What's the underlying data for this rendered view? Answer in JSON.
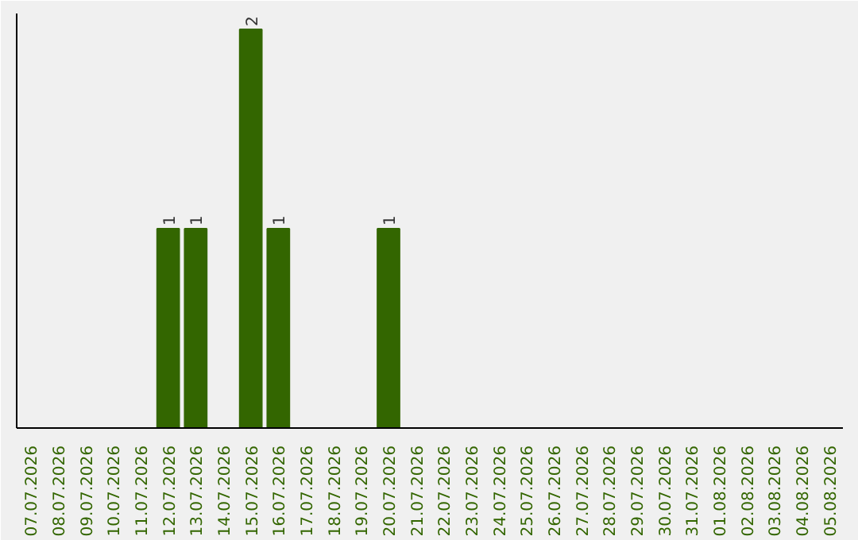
{
  "chart_data": {
    "type": "bar",
    "categories": [
      "07.07.2026",
      "08.07.2026",
      "09.07.2026",
      "10.07.2026",
      "11.07.2026",
      "12.07.2026",
      "13.07.2026",
      "14.07.2026",
      "15.07.2026",
      "16.07.2026",
      "17.07.2026",
      "18.07.2026",
      "19.07.2026",
      "20.07.2026",
      "21.07.2026",
      "22.07.2026",
      "23.07.2026",
      "24.07.2026",
      "25.07.2026",
      "26.07.2026",
      "27.07.2026",
      "28.07.2026",
      "29.07.2026",
      "30.07.2026",
      "31.07.2026",
      "01.08.2026",
      "02.08.2026",
      "03.08.2026",
      "04.08.2026",
      "05.08.2026"
    ],
    "values": [
      0,
      0,
      0,
      0,
      0,
      1,
      1,
      0,
      2,
      1,
      0,
      0,
      0,
      1,
      0,
      0,
      0,
      0,
      0,
      0,
      0,
      0,
      0,
      0,
      0,
      0,
      0,
      0,
      0,
      0
    ],
    "value_labels": [
      null,
      null,
      null,
      null,
      null,
      "1",
      "1",
      null,
      "2",
      "1",
      null,
      null,
      null,
      "1",
      null,
      null,
      null,
      null,
      null,
      null,
      null,
      null,
      null,
      null,
      null,
      null,
      null,
      null,
      null,
      null
    ],
    "color": "#336600",
    "ylim": [
      0,
      2.08
    ],
    "tick_labels": "x",
    "grid": false
  }
}
